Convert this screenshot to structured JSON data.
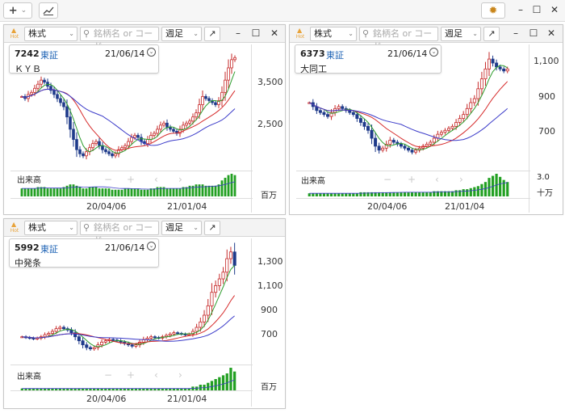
{
  "toolbar": {
    "add_label": "+",
    "add_caret": "⌄",
    "chart_icon": "chart-icon",
    "settings_icon": "gear-icon",
    "minimize": "–",
    "maximize": "☐",
    "close": "✕"
  },
  "panels": [
    {
      "market_select": "株式",
      "search_placeholder": "銘柄名 or コード",
      "period_select": "週足",
      "code": "7242",
      "exchange": "東証",
      "date": "21/06/14",
      "name": "ＫＹＢ",
      "y_ticks": [
        "3,500",
        "2,500"
      ],
      "x_ticks": [
        "20/04/06",
        "21/01/04"
      ],
      "volume_label": "出来高",
      "volume_unit": "百万",
      "volume_scale": ""
    },
    {
      "market_select": "株式",
      "search_placeholder": "銘柄名 or コード",
      "period_select": "週足",
      "code": "6373",
      "exchange": "東証",
      "date": "21/06/14",
      "name": "大同工",
      "y_ticks": [
        "1,100",
        "900",
        "700"
      ],
      "x_ticks": [
        "20/04/06",
        "21/01/04"
      ],
      "volume_label": "出来高",
      "volume_unit": "十万",
      "volume_scale": "3.0"
    },
    {
      "market_select": "株式",
      "search_placeholder": "銘柄名 or コード",
      "period_select": "週足",
      "code": "5992",
      "exchange": "東証",
      "date": "21/06/14",
      "name": "中発条",
      "y_ticks": [
        "1,300",
        "1,100",
        "900",
        "700"
      ],
      "x_ticks": [
        "20/04/06",
        "21/01/04"
      ],
      "volume_label": "出来高",
      "volume_unit": "百万",
      "volume_scale": ""
    }
  ],
  "series": [
    {
      "closes": [
        3200,
        3150,
        3250,
        3300,
        3400,
        3500,
        3600,
        3550,
        3450,
        3350,
        3250,
        3150,
        3050,
        2950,
        2700,
        2400,
        2150,
        1900,
        1800,
        1750,
        1850,
        1950,
        2050,
        2100,
        2000,
        1900,
        1850,
        1800,
        1750,
        1800,
        1900,
        1950,
        2000,
        2100,
        2200,
        2250,
        2200,
        2100,
        2050,
        2150,
        2250,
        2300,
        2400,
        2500,
        2550,
        2450,
        2400,
        2350,
        2300,
        2400,
        2500,
        2550,
        2600,
        2700,
        2800,
        3000,
        3200,
        3150,
        3100,
        3050,
        3000,
        3100,
        3300,
        3600,
        3900,
        4100,
        4150
      ]
    },
    {
      "closes": [
        880,
        860,
        840,
        830,
        820,
        810,
        830,
        850,
        860,
        850,
        840,
        830,
        820,
        800,
        780,
        760,
        740,
        700,
        660,
        640,
        650,
        670,
        690,
        680,
        670,
        660,
        650,
        640,
        630,
        640,
        650,
        660,
        670,
        680,
        700,
        720,
        730,
        740,
        750,
        760,
        780,
        800,
        820,
        850,
        880,
        900,
        950,
        1000,
        1050,
        1100,
        1080,
        1060,
        1050,
        1040,
        1050
      ]
    },
    {
      "closes": [
        720,
        715,
        710,
        705,
        710,
        720,
        735,
        745,
        760,
        780,
        790,
        780,
        770,
        750,
        720,
        690,
        660,
        640,
        630,
        640,
        660,
        680,
        690,
        700,
        695,
        690,
        680,
        670,
        660,
        650,
        660,
        680,
        700,
        710,
        720,
        715,
        710,
        720,
        730,
        740,
        750,
        745,
        740,
        735,
        740,
        760,
        790,
        830,
        880,
        950,
        1050,
        1100,
        1150,
        1200,
        1300,
        1350,
        1250
      ]
    }
  ],
  "volumes": [
    [
      6,
      6,
      6,
      6,
      6,
      7,
      7,
      7,
      6,
      6,
      6,
      6,
      6,
      7,
      8,
      9,
      9,
      8,
      7,
      6,
      6,
      7,
      7,
      7,
      6,
      6,
      6,
      6,
      5,
      5,
      5,
      5,
      6,
      6,
      6,
      6,
      6,
      5,
      5,
      5,
      6,
      6,
      7,
      7,
      7,
      6,
      6,
      6,
      6,
      6,
      7,
      7,
      8,
      8,
      9,
      9,
      9,
      8,
      8,
      8,
      8,
      9,
      12,
      14,
      16,
      17,
      16
    ],
    [
      3,
      3,
      3,
      3,
      3,
      3,
      3,
      3,
      3,
      3,
      3,
      3,
      3,
      3,
      4,
      4,
      4,
      4,
      4,
      4,
      4,
      4,
      4,
      4,
      4,
      4,
      4,
      4,
      4,
      4,
      4,
      4,
      4,
      4,
      5,
      5,
      5,
      5,
      5,
      5,
      6,
      6,
      7,
      7,
      8,
      9,
      10,
      12,
      14,
      18,
      20,
      22,
      19,
      16,
      14
    ],
    [
      1,
      1,
      1,
      1,
      1,
      1,
      1,
      1,
      1,
      1,
      1,
      1,
      1,
      1,
      1,
      1,
      1,
      1,
      1,
      1,
      1,
      1,
      1,
      1,
      1,
      1,
      1,
      1,
      1,
      1,
      1,
      1,
      1,
      1,
      1,
      1,
      1,
      1,
      1,
      1,
      1,
      1,
      1,
      1,
      1,
      2,
      2,
      3,
      3,
      4,
      5,
      6,
      7,
      8,
      9,
      12,
      10
    ]
  ],
  "colors": {
    "up": "#c62828",
    "down": "#1e3a8a",
    "ma_short": "#2e9d2e",
    "ma_mid": "#d62a2a",
    "ma_long": "#3b3bc9",
    "volume": "#22a022",
    "exchange": "#1e63b5"
  }
}
